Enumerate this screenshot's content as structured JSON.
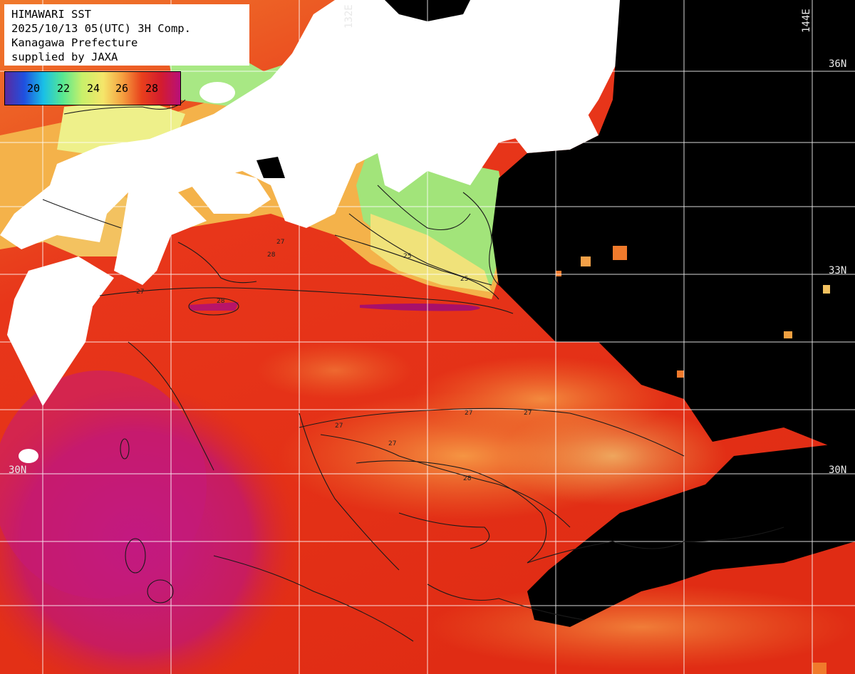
{
  "header": {
    "title": "HIMAWARI SST",
    "datetime": "2025/10/13 05(UTC) 3H Comp.",
    "prefecture": "Kanagawa Prefecture",
    "credit": "supplied by JAXA"
  },
  "colorbar": {
    "labels": [
      "20",
      "22",
      "24",
      "26",
      "28"
    ],
    "stops": [
      "#5a2aa0",
      "#1f50e0",
      "#19c0e6",
      "#58e890",
      "#c8f06a",
      "#f5e66a",
      "#f5a040",
      "#e8401c",
      "#d41c2e",
      "#b8107a"
    ]
  },
  "grid": {
    "lat_labels": [
      "36N",
      "33N",
      "30N",
      "30N"
    ],
    "lon_labels": [
      "132E",
      "144E"
    ]
  },
  "contour_labels": [
    "27",
    "25",
    "25",
    "28",
    "27",
    "28",
    "27",
    "27",
    "27",
    "27",
    "28"
  ],
  "colors": {
    "land": "#ffffff",
    "cloud": "#000000",
    "grid": "#ffffff"
  }
}
